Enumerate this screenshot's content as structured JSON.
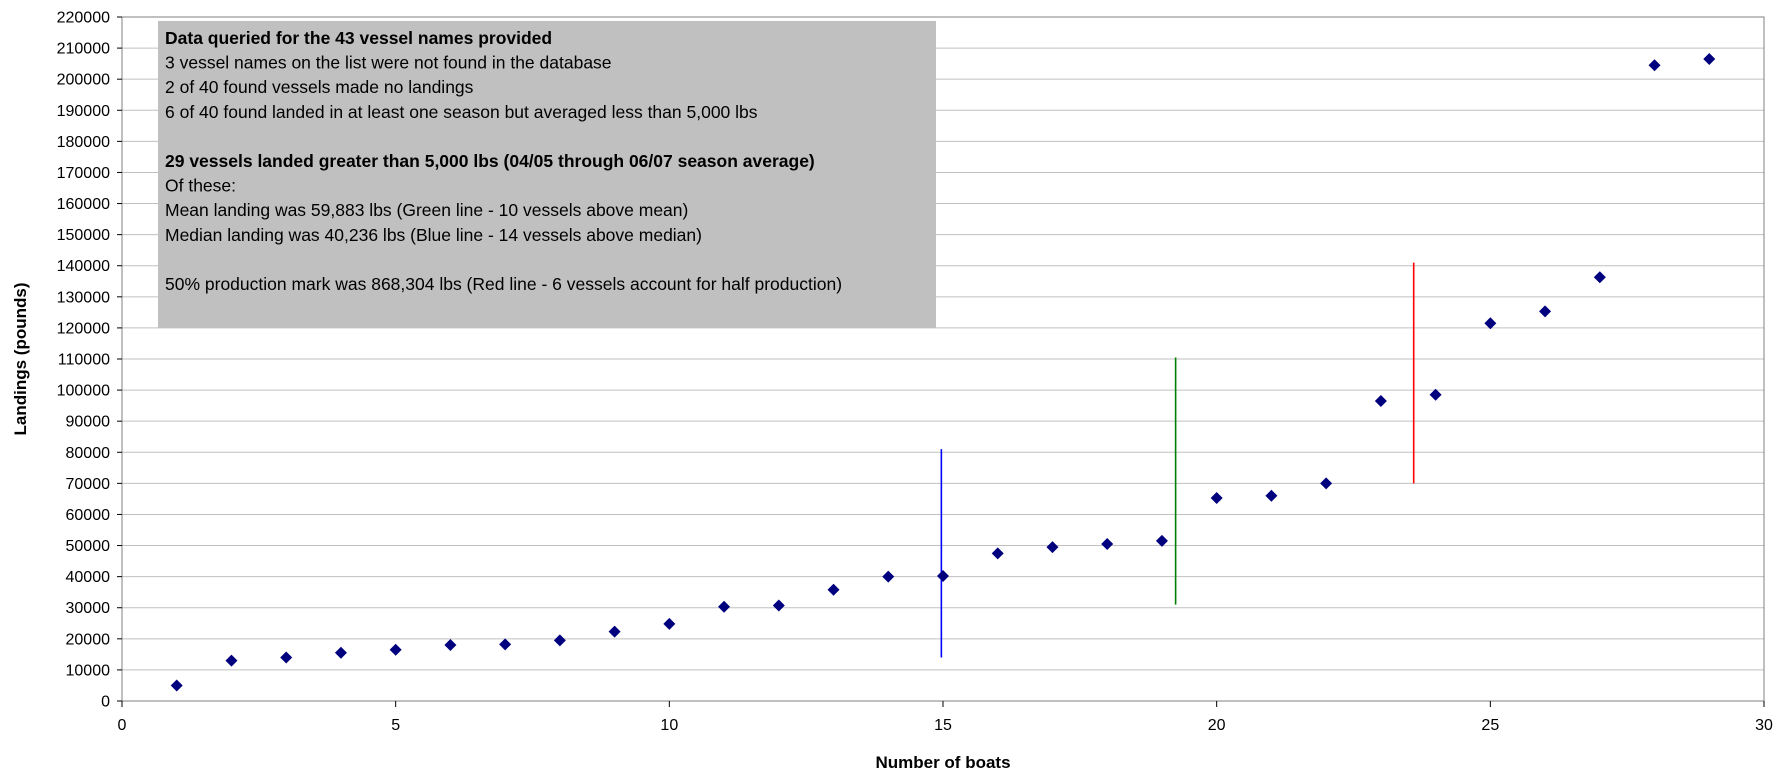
{
  "chart_data": {
    "type": "scatter",
    "xlabel": "Number of boats",
    "ylabel": "Landings (pounds)",
    "xlim": [
      0,
      30
    ],
    "ylim": [
      0,
      220000
    ],
    "x_ticks": [
      0,
      5,
      10,
      15,
      20,
      25,
      30
    ],
    "y_ticks": [
      0,
      10000,
      20000,
      30000,
      40000,
      50000,
      60000,
      70000,
      80000,
      90000,
      100000,
      110000,
      120000,
      130000,
      140000,
      150000,
      160000,
      170000,
      180000,
      190000,
      200000,
      210000,
      220000
    ],
    "grid": "horizontal",
    "marker": "diamond",
    "marker_color": "#00007f",
    "series": [
      {
        "x": [
          1,
          2,
          3,
          4,
          5,
          6,
          7,
          8,
          9,
          10,
          11,
          12,
          13,
          14,
          15,
          16,
          17,
          18,
          19,
          20,
          21,
          22,
          23,
          24,
          25,
          26,
          27,
          28,
          29
        ],
        "y": [
          5000,
          13000,
          14000,
          15500,
          16500,
          18000,
          18200,
          19500,
          22300,
          24800,
          30300,
          30700,
          35800,
          40000,
          40200,
          47500,
          49500,
          50500,
          51500,
          65300,
          66000,
          70000,
          96500,
          98500,
          121500,
          125300,
          136300,
          204500,
          206500
        ]
      }
    ],
    "reference_lines": [
      {
        "color": "#0000ff",
        "x": 14.97,
        "y_range": [
          14000,
          81000
        ]
      },
      {
        "color": "#008000",
        "x": 19.25,
        "y_range": [
          31000,
          110500
        ]
      },
      {
        "color": "#ff0000",
        "x": 23.6,
        "y_range": [
          70000,
          141000
        ]
      }
    ],
    "annotation": {
      "background": "#c0c0c0",
      "lines": [
        {
          "text": "Data queried for the 43 vessel names provided",
          "bold": true
        },
        {
          "text": "3 vessel names on the list were not found in the database",
          "bold": false
        },
        {
          "text": "2 of 40 found vessels made no landings",
          "bold": false
        },
        {
          "text": "6 of 40 found landed in at least one season but averaged less than 5,000 lbs",
          "bold": false
        },
        {
          "text": "",
          "bold": false
        },
        {
          "text": "29 vessels landed greater than 5,000 lbs (04/05 through 06/07 season average)",
          "bold": true
        },
        {
          "text": "Of these:",
          "bold": false
        },
        {
          "text": "Mean landing was 59,883 lbs (Green line - 10 vessels above mean)",
          "bold": false
        },
        {
          "text": "Median landing was 40,236 lbs (Blue line - 14 vessels above median)",
          "bold": false
        },
        {
          "text": "",
          "bold": false
        },
        {
          "text": "50% production mark was 868,304 lbs (Red line - 6 vessels account for half production)",
          "bold": false
        }
      ]
    }
  }
}
